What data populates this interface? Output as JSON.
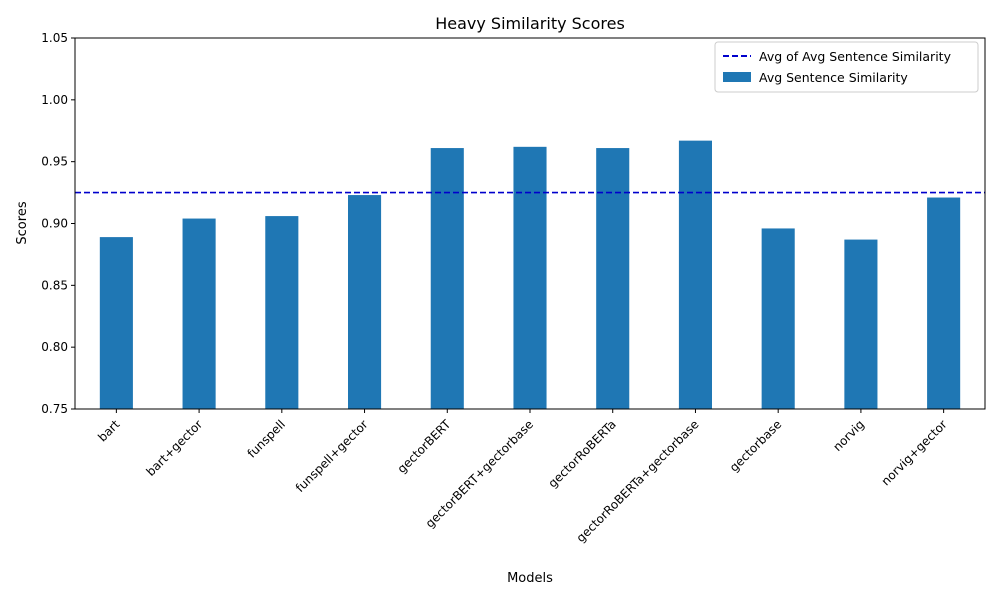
{
  "chart_data": {
    "type": "bar",
    "title": "Heavy Similarity Scores",
    "xlabel": "Models",
    "ylabel": "Scores",
    "ylim": [
      0.75,
      1.05
    ],
    "yticks": [
      "0.75",
      "0.80",
      "0.85",
      "0.90",
      "0.95",
      "1.00",
      "1.05"
    ],
    "categories": [
      "bart",
      "bart+gector",
      "funspell",
      "funspell+gector",
      "gectorBERT",
      "gectorBERT+gectorbase",
      "gectorRoBERTa",
      "gectorRoBERTa+gectorbase",
      "gectorbase",
      "norvig",
      "norvig+gector"
    ],
    "series": [
      {
        "name": "Avg Sentence Similarity",
        "color": "#1f77b4",
        "values": [
          0.889,
          0.904,
          0.906,
          0.923,
          0.961,
          0.962,
          0.961,
          0.967,
          0.896,
          0.887,
          0.921
        ]
      }
    ],
    "reference_line": {
      "name": "Avg of Avg Sentence Similarity",
      "value": 0.925,
      "color": "#0000cc",
      "style": "dashed"
    },
    "legend": {
      "placement": "top-right"
    },
    "grid": false
  }
}
